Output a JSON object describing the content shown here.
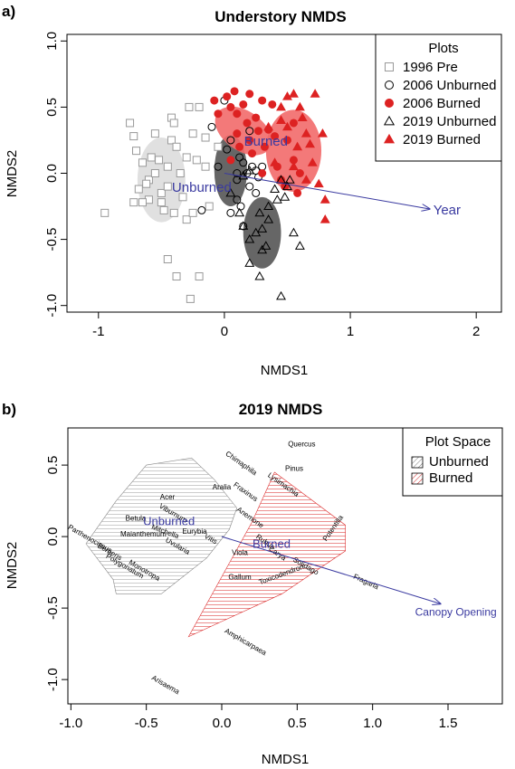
{
  "chart_data": [
    {
      "panel_letter": "a)",
      "type": "scatter",
      "title": "Understory NMDS",
      "xlabel": "NMDS1",
      "ylabel": "NMDS2",
      "xlim": [
        -1.25,
        2.2
      ],
      "ylim": [
        -1.05,
        1.05
      ],
      "x_ticks": [
        -1,
        0,
        1,
        2
      ],
      "y_ticks": [
        -1.0,
        -0.5,
        0.0,
        0.5,
        1.0
      ],
      "x_tick_labels": [
        "-1",
        "0",
        "1",
        "2"
      ],
      "y_tick_labels": [
        "-1.0",
        "-0.5",
        "0.0",
        "0.5",
        "1.0"
      ],
      "legend": {
        "title": "Plots",
        "position": "top-right",
        "entries": [
          {
            "label": "1996 Pre",
            "marker": "square-open",
            "color": "#999999"
          },
          {
            "label": "2006 Unburned",
            "marker": "circle-open",
            "color": "#000000"
          },
          {
            "label": "2006 Burned",
            "marker": "circle-filled",
            "color": "#dd2222"
          },
          {
            "label": "2019 Unburned",
            "marker": "triangle-open",
            "color": "#000000"
          },
          {
            "label": "2019 Burned",
            "marker": "triangle-filled",
            "color": "#dd2222"
          }
        ]
      },
      "ellipses": [
        {
          "group": "1996 Pre",
          "cx": -0.5,
          "cy": -0.05,
          "rx": 0.19,
          "ry": 0.32,
          "color": "#dddddd"
        },
        {
          "group": "2006 Unburned",
          "cx": 0.05,
          "cy": 0.02,
          "rx": 0.13,
          "ry": 0.27,
          "color": "#555555"
        },
        {
          "group": "2006 Burned",
          "cx": 0.15,
          "cy": 0.32,
          "rx": 0.25,
          "ry": 0.15,
          "rotate": 35,
          "color": "#f26a6a"
        },
        {
          "group": "2019 Unburned",
          "cx": 0.3,
          "cy": -0.45,
          "rx": 0.15,
          "ry": 0.27,
          "color": "#555555"
        },
        {
          "group": "2019 Burned",
          "cx": 0.55,
          "cy": 0.17,
          "rx": 0.22,
          "ry": 0.31,
          "color": "#f26a6a"
        }
      ],
      "series": [
        {
          "name": "1996 Pre",
          "marker": "square-open",
          "color": "#999999",
          "points": [
            [
              -0.95,
              -0.3
            ],
            [
              -0.75,
              0.38
            ],
            [
              -0.72,
              0.28
            ],
            [
              -0.7,
              0.17
            ],
            [
              -0.68,
              -0.12
            ],
            [
              -0.72,
              -0.22
            ],
            [
              -0.65,
              0.08
            ],
            [
              -0.6,
              -0.05
            ],
            [
              -0.6,
              -0.2
            ],
            [
              -0.55,
              0.3
            ],
            [
              -0.55,
              0.0
            ],
            [
              -0.52,
              0.1
            ],
            [
              -0.5,
              -0.15
            ],
            [
              -0.48,
              -0.28
            ],
            [
              -0.45,
              0.05
            ],
            [
              -0.45,
              -0.1
            ],
            [
              -0.42,
              0.25
            ],
            [
              -0.4,
              -0.3
            ],
            [
              -0.42,
              0.42
            ],
            [
              -0.4,
              0.38
            ],
            [
              -0.38,
              0.2
            ],
            [
              -0.35,
              0.0
            ],
            [
              -0.33,
              -0.18
            ],
            [
              -0.3,
              0.12
            ],
            [
              -0.3,
              -0.35
            ],
            [
              -0.28,
              0.5
            ],
            [
              -0.25,
              0.3
            ],
            [
              -0.25,
              -0.3
            ],
            [
              -0.22,
              0.1
            ],
            [
              -0.2,
              0.5
            ],
            [
              -0.15,
              0.27
            ],
            [
              -0.15,
              0.05
            ],
            [
              -0.12,
              -0.25
            ],
            [
              -0.05,
              0.2
            ],
            [
              -0.38,
              -0.78
            ],
            [
              -0.2,
              -0.78
            ],
            [
              -0.45,
              -0.65
            ],
            [
              -0.27,
              -0.95
            ],
            [
              -0.5,
              -0.22
            ],
            [
              -0.58,
              0.12
            ],
            [
              -0.65,
              -0.22
            ],
            [
              -0.62,
              -0.08
            ]
          ]
        },
        {
          "name": "2006 Unburned",
          "marker": "circle-open",
          "color": "#000000",
          "points": [
            [
              -0.1,
              0.35
            ],
            [
              -0.05,
              0.05
            ],
            [
              0.02,
              0.18
            ],
            [
              0.05,
              0.25
            ],
            [
              0.1,
              -0.05
            ],
            [
              0.12,
              0.12
            ],
            [
              0.15,
              0.08
            ],
            [
              0.1,
              -0.2
            ],
            [
              0.13,
              -0.25
            ],
            [
              0.18,
              0.0
            ],
            [
              0.2,
              -0.1
            ],
            [
              0.22,
              0.05
            ],
            [
              0.25,
              0.02
            ],
            [
              0.27,
              -0.03
            ],
            [
              0.3,
              0.05
            ],
            [
              0.15,
              -0.4
            ],
            [
              0.05,
              -0.3
            ],
            [
              -0.18,
              -0.28
            ],
            [
              0.1,
              0.0
            ],
            [
              0.25,
              -0.15
            ],
            [
              0.0,
              0.55
            ],
            [
              0.2,
              0.32
            ]
          ]
        },
        {
          "name": "2006 Burned",
          "marker": "circle-filled",
          "color": "#dd2222",
          "points": [
            [
              -0.08,
              0.55
            ],
            [
              -0.05,
              0.45
            ],
            [
              0.02,
              0.58
            ],
            [
              0.05,
              0.5
            ],
            [
              0.08,
              0.62
            ],
            [
              0.1,
              0.45
            ],
            [
              0.1,
              0.3
            ],
            [
              0.15,
              0.52
            ],
            [
              0.18,
              0.38
            ],
            [
              0.2,
              0.25
            ],
            [
              0.22,
              0.15
            ],
            [
              0.25,
              0.42
            ],
            [
              0.27,
              0.32
            ],
            [
              0.3,
              0.55
            ],
            [
              0.32,
              0.2
            ],
            [
              0.35,
              0.33
            ],
            [
              0.38,
              0.52
            ],
            [
              0.4,
              0.28
            ],
            [
              0.42,
              0.05
            ],
            [
              0.45,
              -0.05
            ],
            [
              0.5,
              0.25
            ],
            [
              0.55,
              0.38
            ],
            [
              0.55,
              0.1
            ],
            [
              0.48,
              -0.1
            ],
            [
              0.58,
              -0.15
            ],
            [
              0.6,
              0.0
            ],
            [
              0.2,
              0.6
            ],
            [
              0.05,
              0.1
            ],
            [
              0.3,
              0.0
            ],
            [
              0.12,
              0.2
            ]
          ]
        },
        {
          "name": "2019 Unburned",
          "marker": "triangle-open",
          "color": "#000000",
          "points": [
            [
              0.05,
              -0.15
            ],
            [
              0.12,
              -0.3
            ],
            [
              0.15,
              -0.4
            ],
            [
              0.2,
              -0.5
            ],
            [
              0.25,
              -0.45
            ],
            [
              0.28,
              -0.3
            ],
            [
              0.3,
              -0.42
            ],
            [
              0.33,
              -0.55
            ],
            [
              0.3,
              -0.58
            ],
            [
              0.35,
              -0.35
            ],
            [
              0.4,
              -0.12
            ],
            [
              0.45,
              -0.05
            ],
            [
              0.48,
              -0.18
            ],
            [
              0.5,
              -0.1
            ],
            [
              0.52,
              -0.05
            ],
            [
              0.55,
              -0.45
            ],
            [
              0.6,
              -0.55
            ],
            [
              0.2,
              -0.68
            ],
            [
              0.28,
              -0.78
            ],
            [
              0.45,
              -0.93
            ],
            [
              0.35,
              -0.25
            ],
            [
              0.42,
              -0.2
            ],
            [
              0.15,
              -0.02
            ],
            [
              0.2,
              0.02
            ]
          ]
        },
        {
          "name": "2019 Burned",
          "marker": "triangle-filled",
          "color": "#dd2222",
          "points": [
            [
              0.35,
              0.35
            ],
            [
              0.45,
              0.4
            ],
            [
              0.5,
              0.58
            ],
            [
              0.55,
              0.6
            ],
            [
              0.6,
              0.5
            ],
            [
              0.65,
              0.3
            ],
            [
              0.68,
              0.22
            ],
            [
              0.7,
              0.08
            ],
            [
              0.72,
              0.6
            ],
            [
              0.75,
              -0.08
            ],
            [
              0.78,
              0.3
            ],
            [
              0.8,
              -0.2
            ],
            [
              0.65,
              -0.05
            ],
            [
              0.58,
              0.2
            ],
            [
              0.5,
              0.35
            ],
            [
              0.4,
              0.08
            ],
            [
              0.45,
              0.5
            ],
            [
              0.8,
              -0.35
            ],
            [
              0.62,
              0.42
            ],
            [
              0.55,
              0.05
            ]
          ]
        }
      ],
      "vectors": [
        {
          "label": "Year",
          "x": 1.63,
          "y": -0.27,
          "arrow": true
        },
        {
          "label": "Burned",
          "x": 0.33,
          "y": 0.21,
          "arrow": false
        },
        {
          "label": "Unburned",
          "x": -0.18,
          "y": -0.14,
          "arrow": false
        }
      ]
    },
    {
      "panel_letter": "b)",
      "type": "scatter",
      "title": "2019 NMDS",
      "xlabel": "NMDS1",
      "ylabel": "NMDS2",
      "xlim": [
        -1.02,
        1.86
      ],
      "ylim": [
        -1.17,
        0.76
      ],
      "x_ticks": [
        -1.0,
        -0.5,
        0.0,
        0.5,
        1.0,
        1.5
      ],
      "y_ticks": [
        -1.0,
        -0.5,
        0.0,
        0.5
      ],
      "x_tick_labels": [
        "-1.0",
        "-0.5",
        "0.0",
        "0.5",
        "1.0",
        "1.5"
      ],
      "y_tick_labels": [
        "-1.0",
        "-0.5",
        "0.0",
        "0.5"
      ],
      "legend": {
        "title": "Plot Space",
        "position": "top-right",
        "entries": [
          {
            "label": "Unburned",
            "fill": "hatched-gray",
            "color": "#888888"
          },
          {
            "label": "Burned",
            "fill": "hatched-red",
            "color": "#dd3333"
          }
        ]
      },
      "hulls": [
        {
          "group": "Unburned",
          "color": "#888888",
          "points": [
            [
              -0.9,
              -0.05
            ],
            [
              -0.72,
              -0.3
            ],
            [
              -0.7,
              -0.4
            ],
            [
              -0.4,
              -0.4
            ],
            [
              -0.1,
              -0.15
            ],
            [
              0.05,
              0.05
            ],
            [
              0.1,
              0.2
            ],
            [
              -0.05,
              0.4
            ],
            [
              -0.2,
              0.55
            ],
            [
              -0.5,
              0.5
            ],
            [
              -0.7,
              0.25
            ]
          ]
        },
        {
          "group": "Burned",
          "color": "#dd3333",
          "points": [
            [
              -0.22,
              -0.7
            ],
            [
              0.4,
              -0.4
            ],
            [
              0.82,
              -0.1
            ],
            [
              0.82,
              0.08
            ],
            [
              0.35,
              0.45
            ],
            [
              0.2,
              0.1
            ]
          ]
        }
      ],
      "species": [
        {
          "name": "Quercus",
          "x": 0.53,
          "y": 0.63,
          "rot": 0
        },
        {
          "name": "Chimaphila",
          "x": 0.12,
          "y": 0.5,
          "rot": 35
        },
        {
          "name": "Pinus",
          "x": 0.48,
          "y": 0.46,
          "rot": 0
        },
        {
          "name": "Lysimachia",
          "x": 0.4,
          "y": 0.35,
          "rot": 35
        },
        {
          "name": "Aralia",
          "x": 0.0,
          "y": 0.33,
          "rot": 0
        },
        {
          "name": "Fraxinus",
          "x": 0.15,
          "y": 0.3,
          "rot": 35
        },
        {
          "name": "Acer",
          "x": -0.36,
          "y": 0.26,
          "rot": 0
        },
        {
          "name": "Viburnum",
          "x": -0.33,
          "y": 0.15,
          "rot": 30
        },
        {
          "name": "Betula",
          "x": -0.57,
          "y": 0.11,
          "rot": 0
        },
        {
          "name": "Anemone",
          "x": 0.18,
          "y": 0.12,
          "rot": 35
        },
        {
          "name": "Potentilla",
          "x": 0.75,
          "y": 0.05,
          "rot": -55
        },
        {
          "name": "Eurybia",
          "x": -0.18,
          "y": 0.02,
          "rot": 0
        },
        {
          "name": "Vitis",
          "x": -0.08,
          "y": -0.03,
          "rot": 30
        },
        {
          "name": "Maianthemum",
          "x": -0.52,
          "y": 0.0,
          "rot": 0
        },
        {
          "name": "Mitchella",
          "x": -0.38,
          "y": 0.02,
          "rot": 20
        },
        {
          "name": "Uvularia",
          "x": -0.3,
          "y": -0.08,
          "rot": 30
        },
        {
          "name": "Rubus",
          "x": 0.28,
          "y": -0.05,
          "rot": 35
        },
        {
          "name": "Carya",
          "x": 0.36,
          "y": -0.13,
          "rot": 35
        },
        {
          "name": "Viola",
          "x": 0.12,
          "y": -0.13,
          "rot": 0
        },
        {
          "name": "Parthenocissus",
          "x": -0.88,
          "y": -0.03,
          "rot": 30
        },
        {
          "name": "Berberis",
          "x": -0.75,
          "y": -0.12,
          "rot": 30
        },
        {
          "name": "Polygonatum",
          "x": -0.65,
          "y": -0.22,
          "rot": 30
        },
        {
          "name": "Monotropa",
          "x": -0.52,
          "y": -0.25,
          "rot": 30
        },
        {
          "name": "Solidago",
          "x": 0.55,
          "y": -0.22,
          "rot": 30
        },
        {
          "name": "Gallum",
          "x": 0.12,
          "y": -0.3,
          "rot": 0
        },
        {
          "name": "Toxicodendron",
          "x": 0.4,
          "y": -0.28,
          "rot": -20
        },
        {
          "name": "Fragaria",
          "x": 0.95,
          "y": -0.33,
          "rot": 25
        },
        {
          "name": "Amphicarpaea",
          "x": 0.15,
          "y": -0.75,
          "rot": 30
        },
        {
          "name": "Arisaema",
          "x": -0.38,
          "y": -1.05,
          "rot": 30
        }
      ],
      "vectors": [
        {
          "label": "Canopy Opening",
          "x": 1.45,
          "y": -0.47,
          "arrow": true
        },
        {
          "label": "Burned",
          "x": 0.33,
          "y": -0.08,
          "arrow": false
        },
        {
          "label": "Unburned",
          "x": -0.35,
          "y": 0.08,
          "arrow": false
        }
      ]
    }
  ]
}
